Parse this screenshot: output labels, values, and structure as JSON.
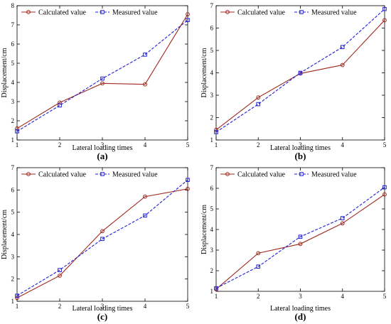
{
  "colors": {
    "calculated": "#a0281e",
    "measured": "#1f1fd6"
  },
  "chart_data": [
    {
      "type": "line",
      "panel_label": "(a)",
      "xlabel": "Lateral loading times",
      "ylabel": "Displacement/cm",
      "x": [
        1,
        2,
        3,
        4,
        5
      ],
      "xlim": [
        1,
        5
      ],
      "ylim": [
        1,
        8
      ],
      "xticks": [
        "1",
        "2",
        "3",
        "4",
        "5"
      ],
      "yticks": [
        "1",
        "2",
        "3",
        "4",
        "5",
        "6",
        "7",
        "8"
      ],
      "legend_position": "top",
      "series": [
        {
          "name": "Calculated value",
          "values": [
            1.6,
            2.95,
            3.95,
            3.9,
            7.55
          ]
        },
        {
          "name": "Measured value",
          "values": [
            1.45,
            2.8,
            4.2,
            5.45,
            7.25
          ]
        }
      ]
    },
    {
      "type": "line",
      "panel_label": "(b)",
      "xlabel": "Lateral loading times",
      "ylabel": "Displacement/cm",
      "x": [
        1,
        2,
        3,
        4,
        5
      ],
      "xlim": [
        1,
        5
      ],
      "ylim": [
        1,
        7
      ],
      "xticks": [
        "1",
        "2",
        "3",
        "4",
        "5"
      ],
      "yticks": [
        "1",
        "2",
        "3",
        "4",
        "5",
        "6",
        "7"
      ],
      "legend_position": "top",
      "series": [
        {
          "name": "Calculated value",
          "values": [
            1.45,
            2.9,
            3.97,
            4.35,
            6.35
          ]
        },
        {
          "name": "Measured value",
          "values": [
            1.35,
            2.6,
            4.0,
            5.15,
            6.85
          ]
        }
      ]
    },
    {
      "type": "line",
      "panel_label": "(c)",
      "xlabel": "Lateral loading times",
      "ylabel": "Displacement/cm",
      "x": [
        1,
        2,
        3,
        4,
        5
      ],
      "xlim": [
        1,
        5
      ],
      "ylim": [
        1,
        7
      ],
      "xticks": [
        "1",
        "2",
        "3",
        "4",
        "5"
      ],
      "yticks": [
        "1",
        "2",
        "3",
        "4",
        "5",
        "6",
        "7"
      ],
      "legend_position": "top",
      "series": [
        {
          "name": "Calculated value",
          "values": [
            1.15,
            2.15,
            4.15,
            5.7,
            6.05
          ]
        },
        {
          "name": "Measured value",
          "values": [
            1.25,
            2.4,
            3.8,
            4.85,
            6.45
          ]
        }
      ]
    },
    {
      "type": "line",
      "panel_label": "(d)",
      "xlabel": "Lateral loading times",
      "ylabel": "Displacement/cm",
      "x": [
        1,
        2,
        3,
        4,
        5
      ],
      "xlim": [
        1,
        5
      ],
      "ylim": [
        1,
        7
      ],
      "xticks": [
        "1",
        "2",
        "3",
        "4",
        "5"
      ],
      "yticks": [
        "1",
        "2",
        "3",
        "4",
        "5",
        "6",
        "7"
      ],
      "legend_position": "top",
      "series": [
        {
          "name": "Calculated value",
          "values": [
            1.1,
            2.85,
            3.3,
            4.3,
            5.7
          ]
        },
        {
          "name": "Measured value",
          "values": [
            1.15,
            2.2,
            3.65,
            4.55,
            6.05
          ]
        }
      ]
    }
  ]
}
